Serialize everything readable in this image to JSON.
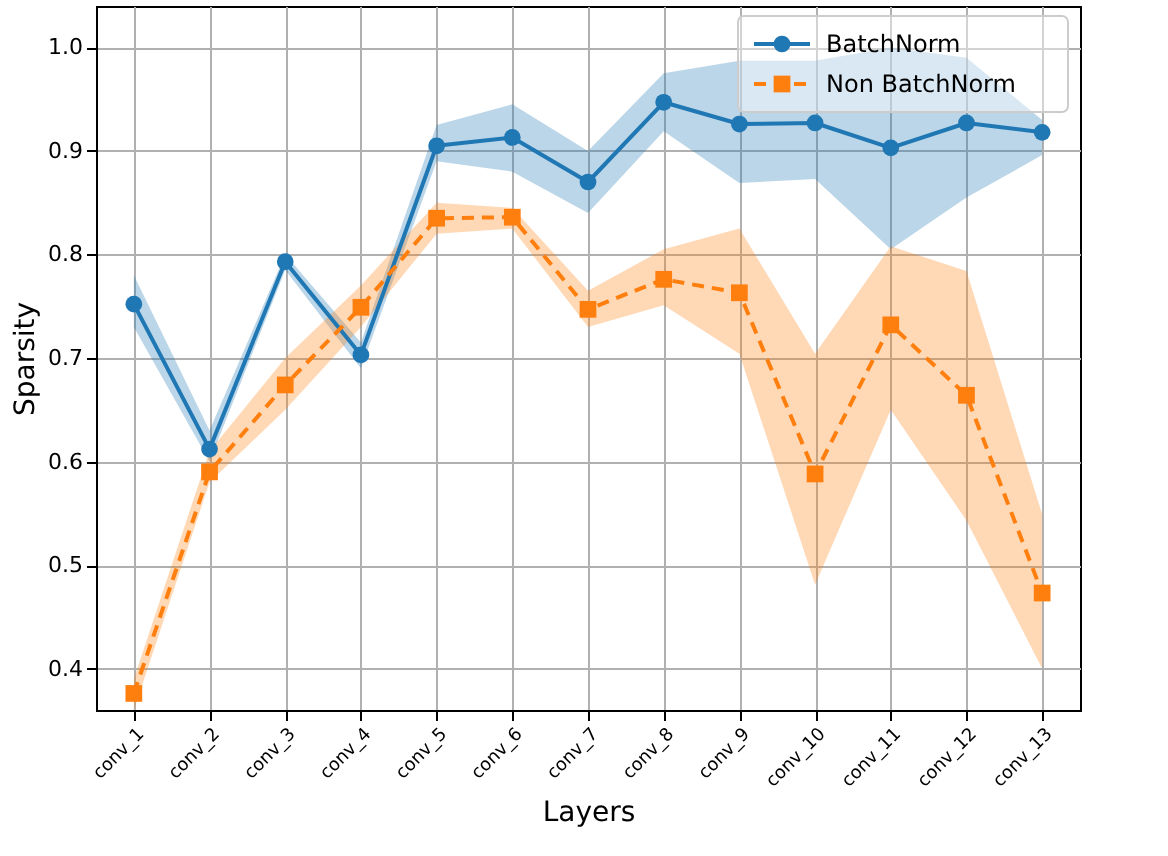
{
  "chart_data": {
    "type": "line",
    "xlabel": "Layers",
    "ylabel": "Sparsity",
    "categories": [
      "conv_1",
      "conv_2",
      "conv_3",
      "conv_4",
      "conv_5",
      "conv_6",
      "conv_7",
      "conv_8",
      "conv_9",
      "conv_10",
      "conv_11",
      "conv_12",
      "conv_13"
    ],
    "ylim": [
      0.36,
      1.04
    ],
    "yticks": [
      0.4,
      0.5,
      0.6,
      0.7,
      0.8,
      0.9,
      {
        "value": 1,
        "label": "1.0"
      }
    ],
    "grid": true,
    "legend": "top right",
    "series": [
      {
        "name": "BatchNorm",
        "color": "#1f77b4",
        "marker": "circle",
        "line_style": "solid",
        "values": [
          0.752,
          0.612,
          0.793,
          0.703,
          0.905,
          0.913,
          0.87,
          0.947,
          0.926,
          0.927,
          0.903,
          0.927,
          0.918
        ],
        "lower": [
          0.73,
          0.6,
          0.785,
          0.69,
          0.89,
          0.88,
          0.84,
          0.919,
          0.869,
          0.873,
          0.805,
          0.855,
          0.896
        ],
        "upper": [
          0.78,
          0.63,
          0.8,
          0.715,
          0.925,
          0.945,
          0.9,
          0.975,
          0.987,
          0.987,
          1.0,
          0.99,
          0.93
        ]
      },
      {
        "name": "Non BatchNorm",
        "color": "#ff7f0e",
        "marker": "square",
        "line_style": "dashed",
        "values": [
          0.376,
          0.59,
          0.674,
          0.749,
          0.835,
          0.836,
          0.747,
          0.776,
          0.763,
          0.588,
          0.732,
          0.664,
          0.473
        ],
        "lower": [
          0.36,
          0.58,
          0.65,
          0.73,
          0.82,
          0.825,
          0.73,
          0.751,
          0.704,
          0.481,
          0.65,
          0.543,
          0.4
        ],
        "upper": [
          0.39,
          0.61,
          0.7,
          0.77,
          0.85,
          0.845,
          0.765,
          0.805,
          0.825,
          0.704,
          0.808,
          0.784,
          0.549
        ]
      }
    ]
  }
}
